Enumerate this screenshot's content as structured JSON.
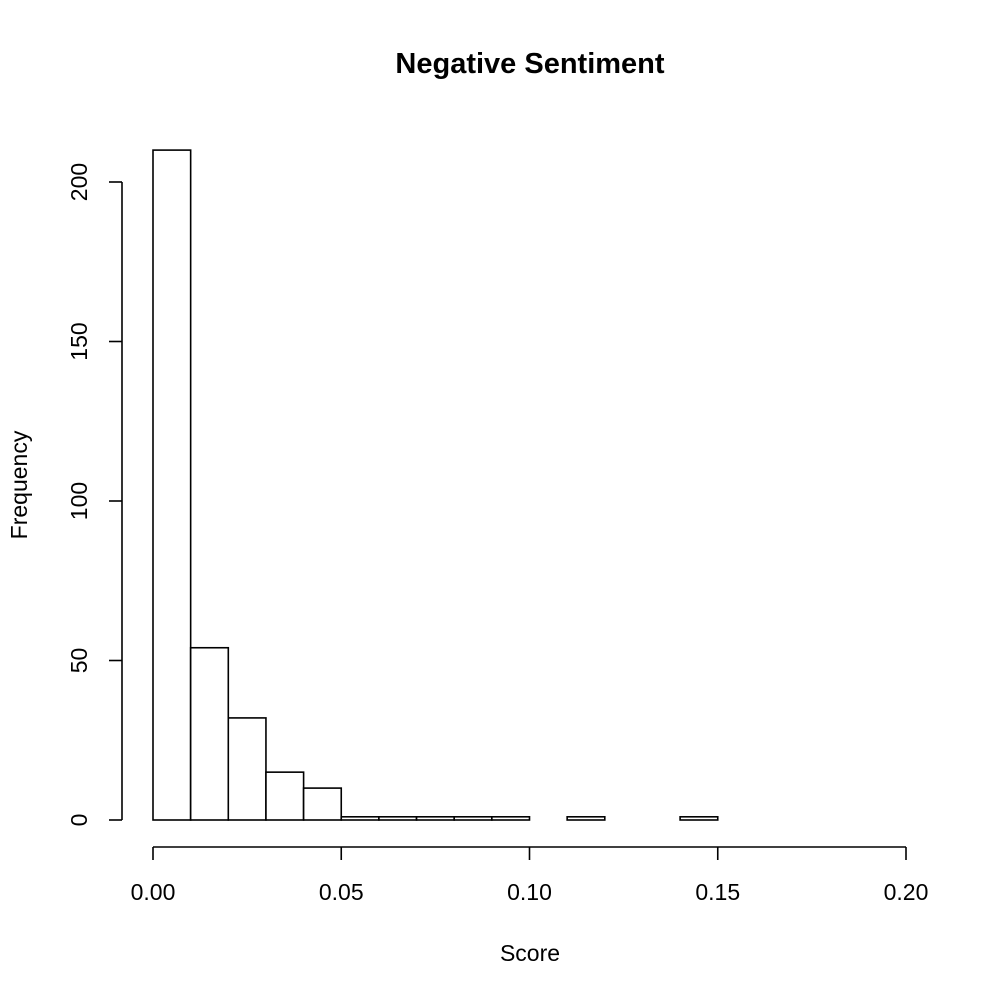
{
  "chart_data": {
    "type": "bar",
    "title": "Negative Sentiment",
    "xlabel": "Score",
    "ylabel": "Frequency",
    "bins": [
      {
        "start": 0.0,
        "end": 0.01,
        "count": 210
      },
      {
        "start": 0.01,
        "end": 0.02,
        "count": 54
      },
      {
        "start": 0.02,
        "end": 0.03,
        "count": 32
      },
      {
        "start": 0.03,
        "end": 0.04,
        "count": 15
      },
      {
        "start": 0.04,
        "end": 0.05,
        "count": 10
      },
      {
        "start": 0.05,
        "end": 0.06,
        "count": 1
      },
      {
        "start": 0.06,
        "end": 0.07,
        "count": 1
      },
      {
        "start": 0.07,
        "end": 0.08,
        "count": 1
      },
      {
        "start": 0.08,
        "end": 0.09,
        "count": 1
      },
      {
        "start": 0.09,
        "end": 0.1,
        "count": 1
      },
      {
        "start": 0.1,
        "end": 0.11,
        "count": 0
      },
      {
        "start": 0.11,
        "end": 0.12,
        "count": 1
      },
      {
        "start": 0.12,
        "end": 0.13,
        "count": 0
      },
      {
        "start": 0.13,
        "end": 0.14,
        "count": 0
      },
      {
        "start": 0.14,
        "end": 0.15,
        "count": 1
      }
    ],
    "xlim": [
      0,
      0.2
    ],
    "ylim": [
      0,
      200
    ],
    "x_ticks": [
      "0.00",
      "0.05",
      "0.10",
      "0.15",
      "0.20"
    ],
    "y_ticks": [
      "0",
      "50",
      "100",
      "150",
      "200"
    ],
    "grid": false,
    "legend": "none"
  }
}
